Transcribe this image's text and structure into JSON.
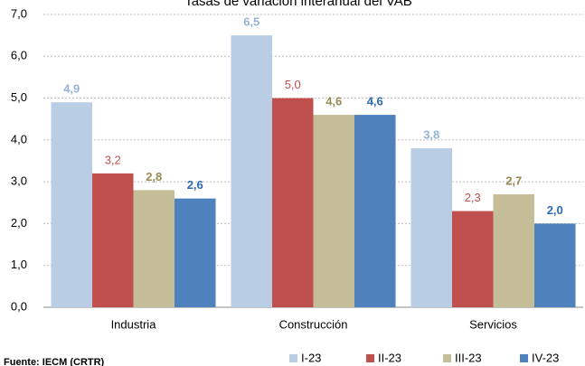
{
  "chart_data": {
    "type": "bar",
    "title": "Tasas de variación interanual del VAB",
    "source": "Fuente: IECM (CRTR)",
    "categories": [
      "Industria",
      "Construcción",
      "Servicios"
    ],
    "series": [
      {
        "name": "I-23",
        "color": "#b9cde5",
        "label_color": "#95b3d7",
        "values": [
          4.9,
          6.5,
          3.8
        ],
        "value_labels": [
          "4,9",
          "6,5",
          "3,8"
        ]
      },
      {
        "name": "II-23",
        "color": "#c0504d",
        "label_color": "#c0504d",
        "values": [
          3.2,
          5.0,
          2.3
        ],
        "value_labels": [
          "3,2",
          "5,0",
          "2,3"
        ]
      },
      {
        "name": "III-23",
        "color": "#c4bd97",
        "label_color": "#948a54",
        "values": [
          2.8,
          4.6,
          2.7
        ],
        "value_labels": [
          "2,8",
          "4,6",
          "2,7"
        ]
      },
      {
        "name": "IV-23",
        "color": "#4f81bd",
        "label_color": "#2e6bb3",
        "values": [
          2.6,
          4.6,
          2.0
        ],
        "value_labels": [
          "2,6",
          "4,6",
          "2,0"
        ]
      }
    ],
    "ylim": [
      0,
      7
    ],
    "yticks": [
      {
        "value": 0,
        "label": "0,0"
      },
      {
        "value": 1,
        "label": "1,0"
      },
      {
        "value": 2,
        "label": "2,0"
      },
      {
        "value": 3,
        "label": "3,0"
      },
      {
        "value": 4,
        "label": "4,0"
      },
      {
        "value": 5,
        "label": "5,0"
      },
      {
        "value": 6,
        "label": "6,0"
      },
      {
        "value": 7,
        "label": "7,0"
      }
    ],
    "grid": true
  }
}
